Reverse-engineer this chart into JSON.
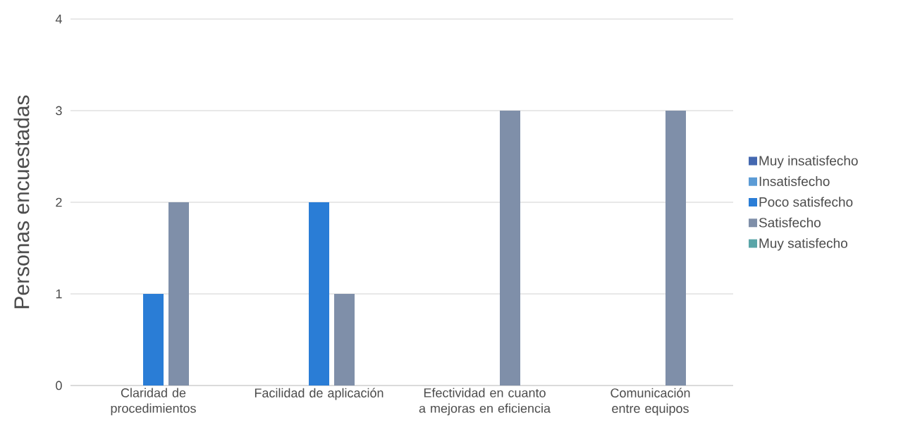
{
  "chart_data": {
    "type": "bar",
    "ylabel": "Personas encuestadas",
    "categories": [
      "Claridad de procedimientos",
      "Facilidad de aplicación",
      "Efectividad en cuanto a mejoras en eficiencia",
      "Comunicación entre equipos"
    ],
    "series": [
      {
        "name": "Muy insatisfecho",
        "color": "#4468b0",
        "values": [
          0,
          0,
          0,
          0
        ]
      },
      {
        "name": "Insatisfecho",
        "color": "#5b9bd5",
        "values": [
          0,
          0,
          0,
          0
        ]
      },
      {
        "name": "Poco satisfecho",
        "color": "#2a7dd6",
        "values": [
          1,
          2,
          0,
          0
        ]
      },
      {
        "name": "Satisfecho",
        "color": "#7f8fa9",
        "values": [
          2,
          1,
          3,
          3
        ]
      },
      {
        "name": "Muy satisfecho",
        "color": "#5aa5a8",
        "values": [
          0,
          0,
          0,
          0
        ]
      }
    ],
    "ylim": [
      0,
      4
    ],
    "yticks": [
      0,
      1,
      2,
      3,
      4
    ],
    "grid": "y",
    "legend": "right"
  }
}
